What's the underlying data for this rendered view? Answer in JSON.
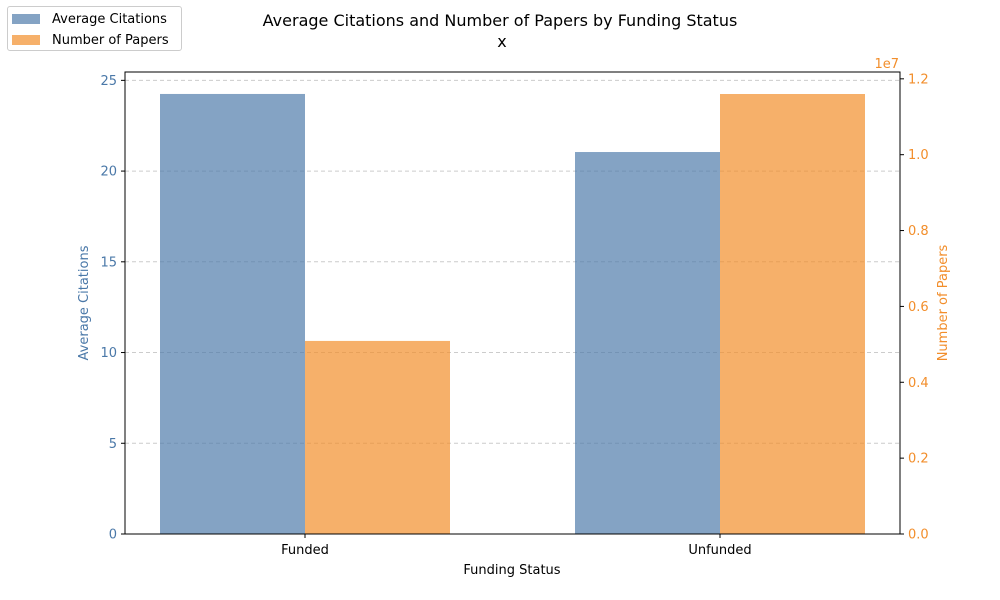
{
  "chart_data": {
    "type": "bar",
    "title": "Average Citations and Number of Papers by Funding Status",
    "subtitle": "x",
    "xlabel": "Funding Status",
    "categories": [
      "Funded",
      "Unfunded"
    ],
    "series": [
      {
        "name": "Average Citations",
        "axis": "left",
        "color": "#4a78a8",
        "values": [
          24.25,
          21.05
        ]
      },
      {
        "name": "Number of Papers",
        "axis": "right",
        "color": "#f28e2b",
        "values": [
          5090000,
          11600000
        ]
      }
    ],
    "left_axis": {
      "label": "Average Citations",
      "color": "#4a78a8",
      "ylim": [
        0,
        25.46
      ],
      "ticks": [
        0,
        5,
        10,
        15,
        20,
        25
      ]
    },
    "right_axis": {
      "label": "Number of Papers",
      "color": "#f28e2b",
      "ylim": [
        0,
        12180000
      ],
      "ticks": [
        0,
        2000000,
        4000000,
        6000000,
        8000000,
        10000000,
        12000000
      ],
      "tick_labels": [
        "0.0",
        "0.2",
        "0.4",
        "0.6",
        "0.8",
        "1.0",
        "1.2"
      ],
      "offset_text": "1e7"
    },
    "grid": "horizontal-dashed",
    "legend_position": "top-left"
  }
}
